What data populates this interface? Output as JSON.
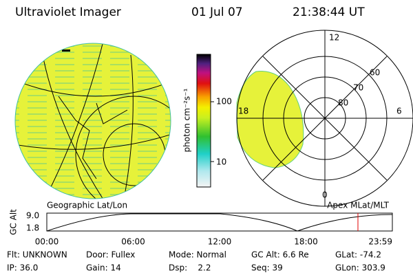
{
  "header": {
    "instrument": "Ultraviolet Imager",
    "date": "01 Jul 07",
    "time": "21:38:44 UT"
  },
  "colorbar": {
    "label": "photon cm⁻²s⁻¹",
    "ticks": [
      "100",
      "10"
    ]
  },
  "polar": {
    "labels": {
      "top": "12",
      "left": "18",
      "right": "6",
      "bottom": "0"
    },
    "rings": [
      "60",
      "70",
      "80"
    ]
  },
  "captions": {
    "left": "Geographic Lat/Lon",
    "right": "Apex MLat/MLT"
  },
  "altitude": {
    "axis_label": "GC Alt",
    "ymax": "9.0",
    "ymin": "1.8",
    "times": [
      "00:00",
      "06:00",
      "12:00",
      "18:00",
      "23:59"
    ]
  },
  "footer": {
    "rows": [
      [
        "Flt: UNKNOWN",
        "Door: Fullex",
        "Mode: Normal",
        "GC Alt: 6.6 Re",
        "GLat: -74.2"
      ],
      [
        "IP: 36.0",
        "Gain: 14",
        "Dsp:    2.2",
        "Seq: 39",
        "GLon: 303.9"
      ]
    ]
  }
}
